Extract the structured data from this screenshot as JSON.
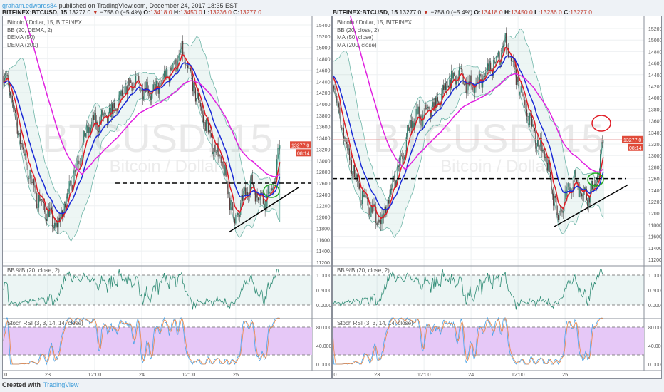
{
  "header": {
    "author": "graham.edwards84",
    "published": "published on TradingView.com, December 24, 2017 18:35 EST"
  },
  "ticker": {
    "symbol": "BITFINEX:BTCUSD, 15",
    "last": "13277.0",
    "arrow": "▼",
    "change": "−758.0 (−5.4%)",
    "o_label": "O:",
    "o": "13418.0",
    "h_label": "H:",
    "h": "13450.0",
    "l_label": "L:",
    "l": "13236.0",
    "c_label": "C:",
    "c": "13277.0"
  },
  "panels": [
    {
      "legend": [
        "Bitcoin / Dollar, 15, BITFINEX",
        "BB (20, DEMA, 2)",
        "DEMA (50)",
        "DEMA (200)"
      ],
      "price_ticks": [
        "15400.0",
        "15200.0",
        "15000.0",
        "14800.0",
        "14600.0",
        "14400.0",
        "14200.0",
        "14000.0",
        "13800.0",
        "13600.0",
        "13400.0",
        "13200.0",
        "13000.0",
        "12800.0",
        "12600.0",
        "12400.0",
        "12200.0",
        "12000.0",
        "11800.0",
        "11600.0",
        "11400.0",
        "11200.0"
      ],
      "price_range": [
        11200,
        15400
      ],
      "last_label": "13277.0",
      "countdown": "08:14"
    },
    {
      "legend": [
        "Bitcoin / Dollar, 15, BITFINEX",
        "BB (20, close, 2)",
        "MA (50, close)",
        "MA (200, close)"
      ],
      "price_ticks": [
        "15200.0",
        "15000.0",
        "14800.0",
        "14600.0",
        "14400.0",
        "14200.0",
        "14000.0",
        "13800.0",
        "13600.0",
        "13400.0",
        "13200.0",
        "13000.0",
        "12800.0",
        "12600.0",
        "12400.0",
        "12200.0",
        "12000.0",
        "11800.0",
        "11600.0",
        "11400.0",
        "11200.0"
      ],
      "price_range": [
        11200,
        15200
      ],
      "last_label": "13277.0",
      "countdown": "08:14"
    }
  ],
  "watermark": {
    "big": "BTCUSD, 15",
    "small": "Bitcoin / Dollar"
  },
  "bbpb": {
    "label": "BB %B (20, close, 2)",
    "ticks": [
      "1.0000",
      "0.5000",
      "0.0000"
    ]
  },
  "stoch": {
    "label": "Stoch RSI (3, 3, 14, 14, close)",
    "ticks": [
      "80.0000",
      "40.0000",
      "0.0000"
    ]
  },
  "time_ticks": [
    "12:00",
    "23",
    "12:00",
    "24",
    "12:00",
    "25"
  ],
  "footer": {
    "created": "Created with",
    "brand": "TradingView"
  },
  "chart_data": {
    "type": "candlestick",
    "title": "Bitcoin / Dollar, 15, BITFINEX",
    "timeframe_minutes": 15,
    "close_keypoints_bar_price": [
      [
        0,
        14500
      ],
      [
        4,
        14400
      ],
      [
        22,
        13000
      ],
      [
        33,
        12400
      ],
      [
        55,
        11800
      ],
      [
        65,
        12400
      ],
      [
        87,
        13600
      ],
      [
        109,
        13800
      ],
      [
        131,
        14400
      ],
      [
        153,
        14200
      ],
      [
        175,
        14700
      ],
      [
        182,
        14900
      ],
      [
        196,
        14200
      ],
      [
        211,
        13400
      ],
      [
        222,
        13000
      ],
      [
        233,
        12200
      ],
      [
        236,
        11900
      ],
      [
        251,
        12600
      ],
      [
        265,
        12300
      ],
      [
        275,
        12500
      ],
      [
        282,
        13277
      ]
    ],
    "support_level": 12600,
    "last": 13277
  },
  "colors": {
    "up": "#2e7d6b",
    "down": "#5a3a3a",
    "fast": "#e01b24",
    "mid": "#1a2ad6",
    "slow": "#e020e0",
    "band": "#6fb5a8",
    "stochfill": "#e6c8f7"
  }
}
